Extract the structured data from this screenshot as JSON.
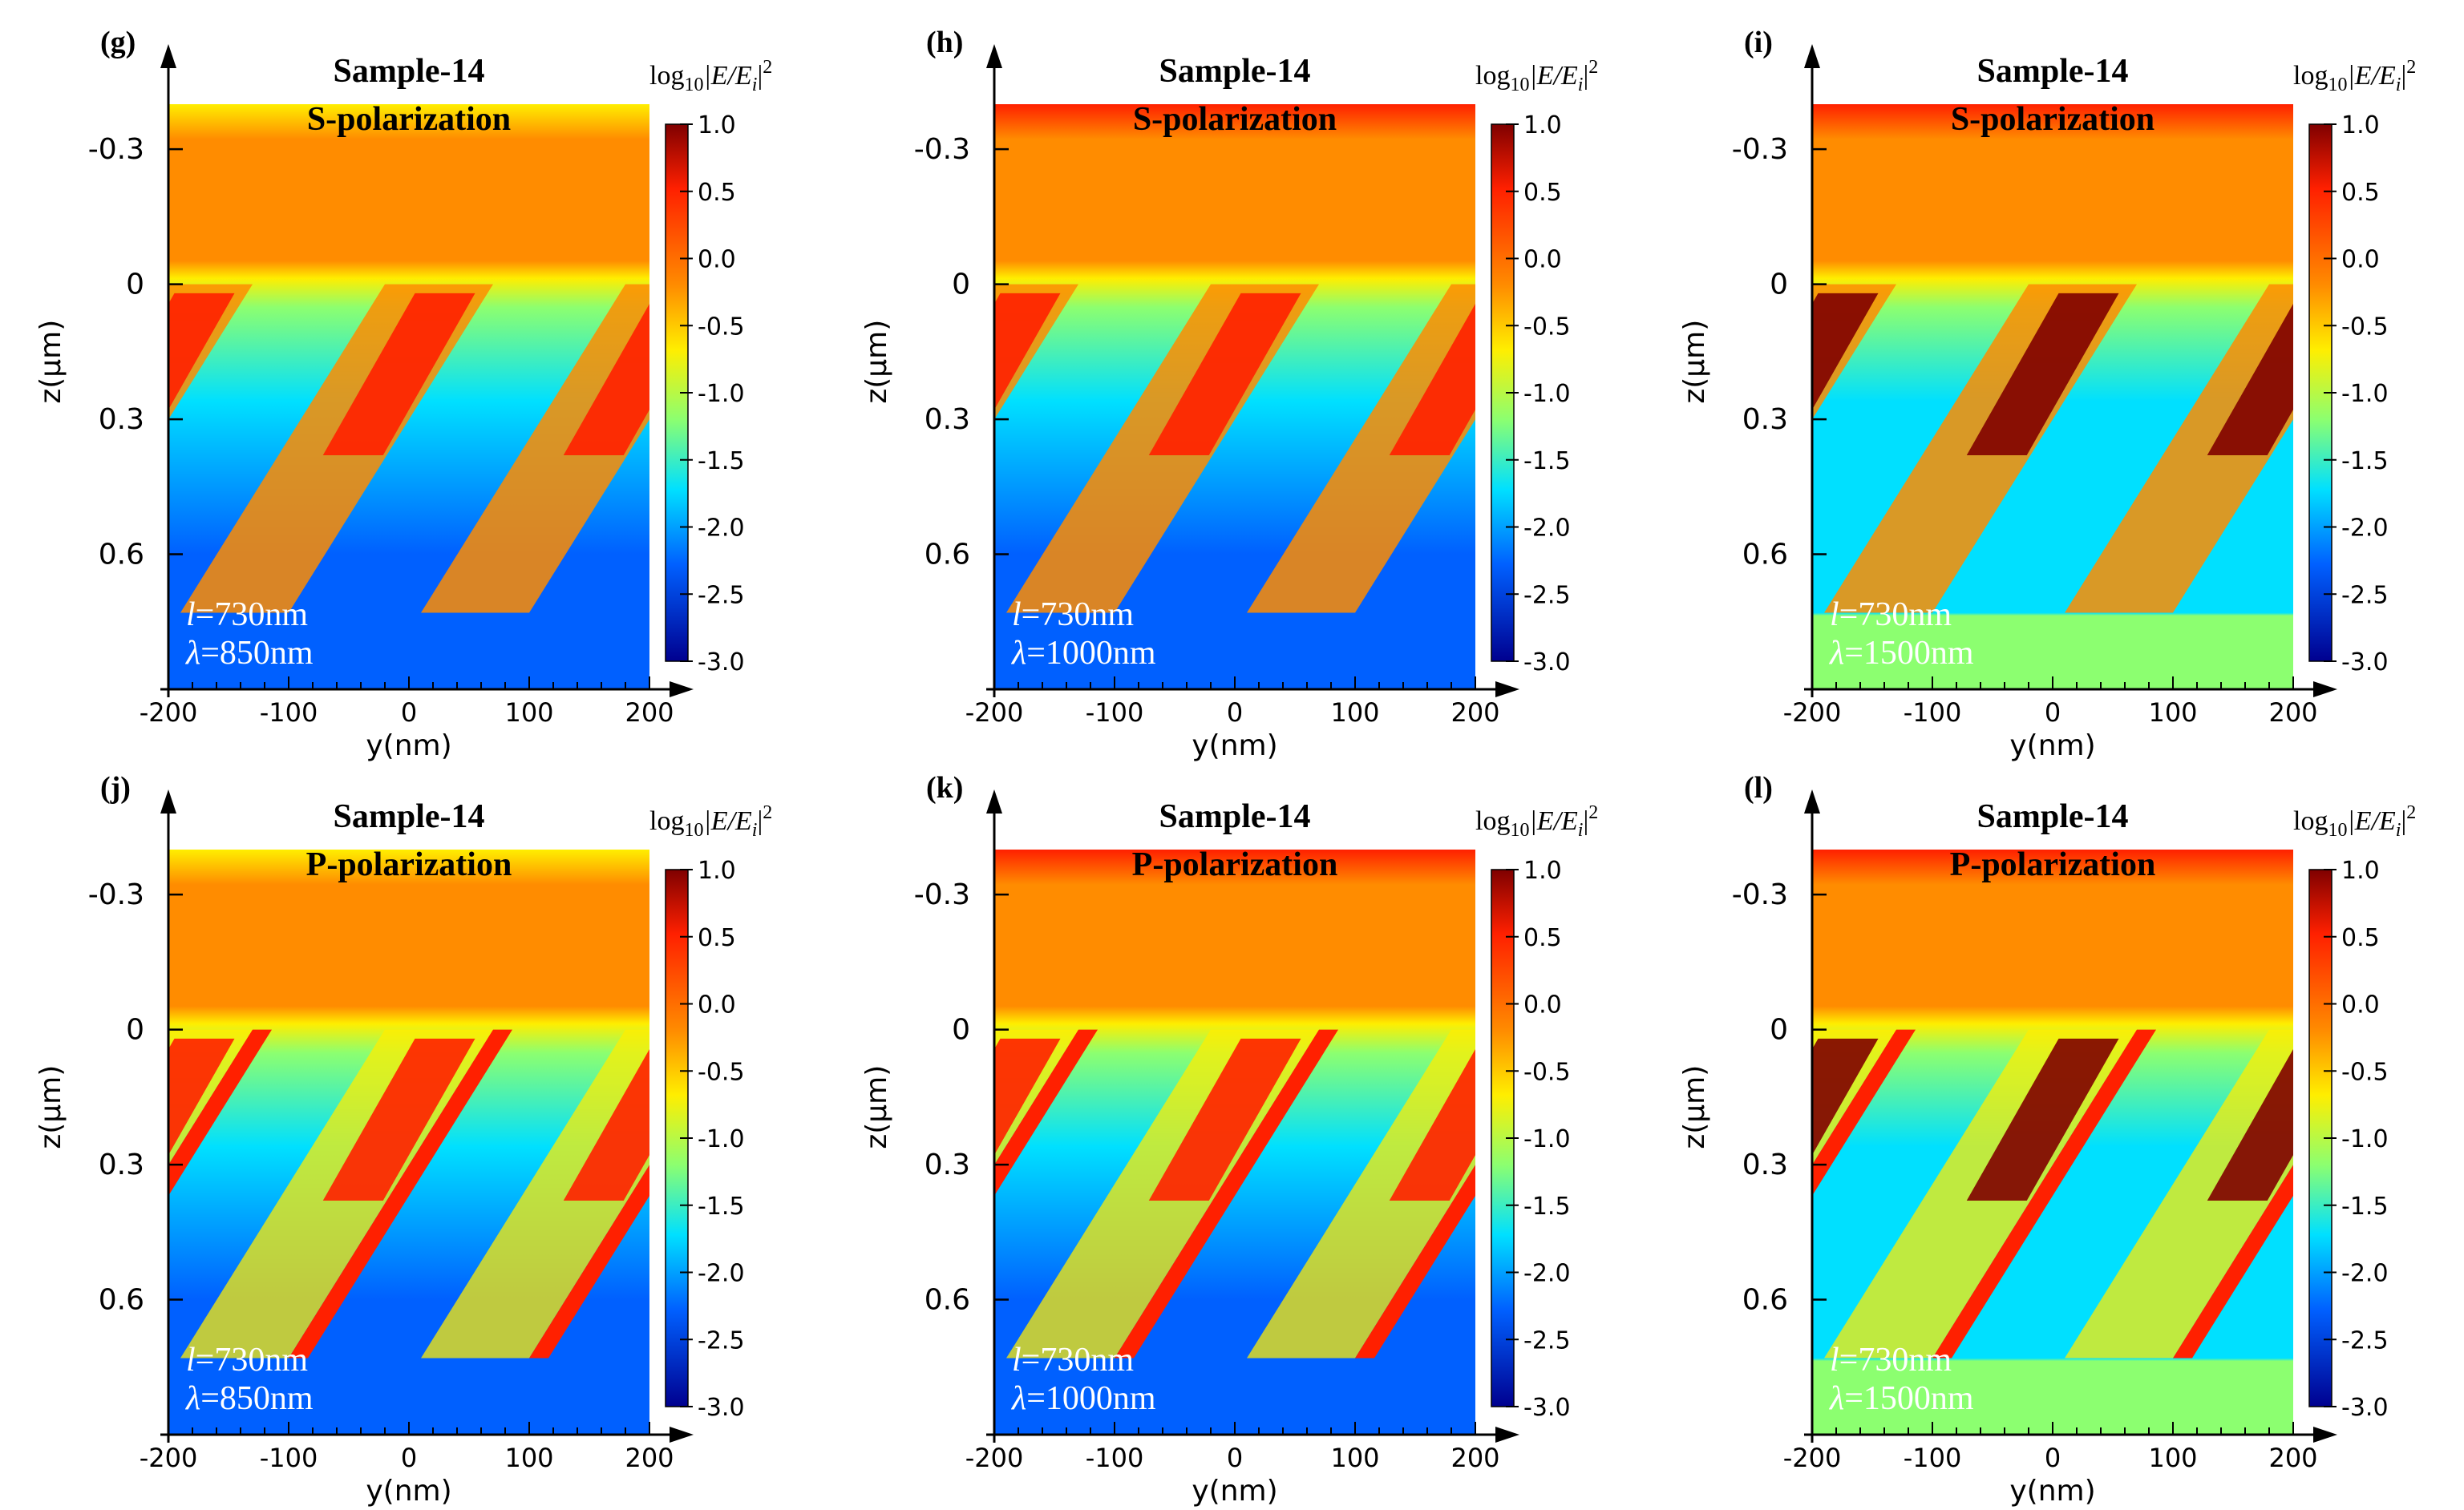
{
  "figure": {
    "colorbar_label": {
      "prefix": "log",
      "sub": "10",
      "expr": "|E/E",
      "expr_sub": "i",
      "expr_end": "|",
      "sup": "2"
    },
    "ytick_labels": [
      "-0.3",
      "0",
      "0.3",
      "0.6"
    ],
    "xtick_labels": [
      "-200",
      "-100",
      "0",
      "100",
      "200"
    ],
    "colorbar_ticks": [
      "1.0",
      "0.5",
      "0.0",
      "-0.5",
      "-1.0",
      "-1.5",
      "-2.0",
      "-2.5",
      "-3.0"
    ],
    "colors": {
      "dark_red": "#7f0000",
      "red": "#ff2000",
      "orange": "#ff8c00",
      "yellow": "#ffee00",
      "green": "#8cff70",
      "cyan": "#00e0ff",
      "blue": "#0060ff",
      "dark_blue": "#00008f"
    }
  },
  "chart_data": [
    {
      "type": "heatmap",
      "panel": "(g)",
      "title": "Sample-14",
      "polarization": "S-polarization",
      "l_text": "=730nm",
      "lambda_text": "=850nm",
      "xlabel": "y(nm)",
      "ylabel": "z(μm)",
      "xlim": [
        -200,
        200
      ],
      "ylim": [
        -0.4,
        0.9
      ],
      "clim": [
        -3.0,
        1.0
      ],
      "l_nm": 730,
      "lambda_nm": 850
    },
    {
      "type": "heatmap",
      "panel": "(h)",
      "title": "Sample-14",
      "polarization": "S-polarization",
      "l_text": "=730nm",
      "lambda_text": "=1000nm",
      "xlabel": "y(nm)",
      "ylabel": "z(μm)",
      "xlim": [
        -200,
        200
      ],
      "ylim": [
        -0.4,
        0.9
      ],
      "clim": [
        -3.0,
        1.0
      ],
      "l_nm": 730,
      "lambda_nm": 1000
    },
    {
      "type": "heatmap",
      "panel": "(i)",
      "title": "Sample-14",
      "polarization": "S-polarization",
      "l_text": "=730nm",
      "lambda_text": "=1500nm",
      "xlabel": "y(nm)",
      "ylabel": "z(μm)",
      "xlim": [
        -200,
        200
      ],
      "ylim": [
        -0.4,
        0.9
      ],
      "clim": [
        -3.0,
        1.0
      ],
      "l_nm": 730,
      "lambda_nm": 1500
    },
    {
      "type": "heatmap",
      "panel": "(j)",
      "title": "Sample-14",
      "polarization": "P-polarization",
      "l_text": "=730nm",
      "lambda_text": "=850nm",
      "xlabel": "y(nm)",
      "ylabel": "z(μm)",
      "xlim": [
        -200,
        200
      ],
      "ylim": [
        -0.4,
        0.9
      ],
      "clim": [
        -3.0,
        1.0
      ],
      "l_nm": 730,
      "lambda_nm": 850
    },
    {
      "type": "heatmap",
      "panel": "(k)",
      "title": "Sample-14",
      "polarization": "P-polarization",
      "l_text": "=730nm",
      "lambda_text": "=1000nm",
      "xlabel": "y(nm)",
      "ylabel": "z(μm)",
      "xlim": [
        -200,
        200
      ],
      "ylim": [
        -0.4,
        0.9
      ],
      "clim": [
        -3.0,
        1.0
      ],
      "l_nm": 730,
      "lambda_nm": 1000
    },
    {
      "type": "heatmap",
      "panel": "(l)",
      "title": "Sample-14",
      "polarization": "P-polarization",
      "l_text": "=730nm",
      "lambda_text": "=1500nm",
      "xlabel": "y(nm)",
      "ylabel": "z(μm)",
      "xlim": [
        -200,
        200
      ],
      "ylim": [
        -0.4,
        0.9
      ],
      "clim": [
        -3.0,
        1.0
      ],
      "l_nm": 730,
      "lambda_nm": 1500
    }
  ]
}
